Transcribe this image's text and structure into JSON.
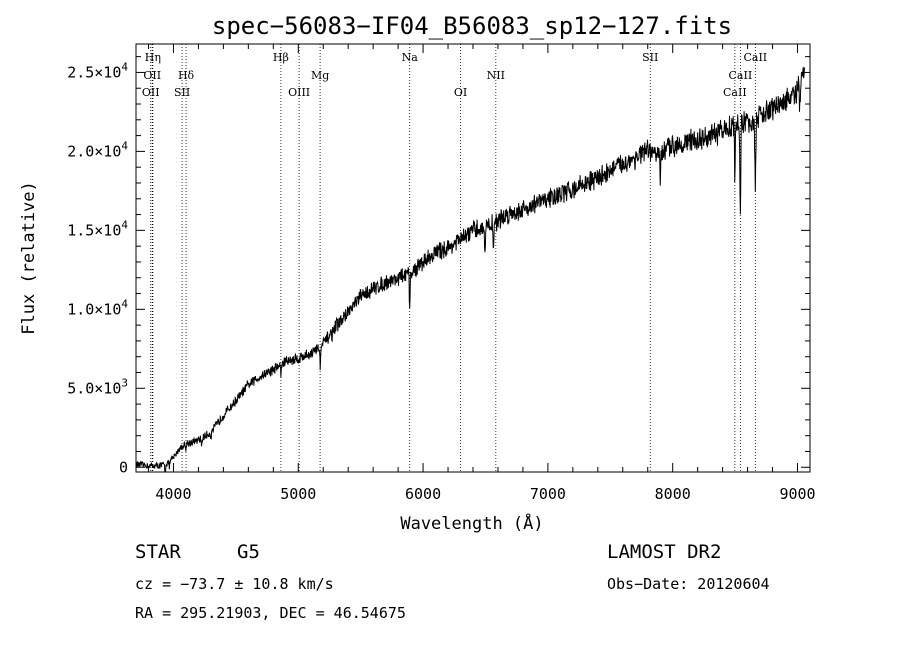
{
  "chart_data": {
    "type": "line",
    "title": "spec−56083−IF04_B56083_sp12−127.fits",
    "xlabel": "Wavelength (Å)",
    "ylabel": "Flux (relative)",
    "xlim": [
      3700,
      9100
    ],
    "ylim": [
      -300,
      26800
    ],
    "x_ticks": [
      4000,
      5000,
      6000,
      7000,
      8000,
      9000
    ],
    "y_ticks": [
      {
        "value": 0,
        "mant": "0",
        "exp": ""
      },
      {
        "value": 5000,
        "mant": "5.0×10",
        "exp": "3"
      },
      {
        "value": 10000,
        "mant": "1.0×10",
        "exp": "4"
      },
      {
        "value": 15000,
        "mant": "1.5×10",
        "exp": "4"
      },
      {
        "value": 20000,
        "mant": "2.0×10",
        "exp": "4"
      },
      {
        "value": 25000,
        "mant": "2.5×10",
        "exp": "4"
      }
    ],
    "grid": false,
    "spectrum": {
      "x": [
        3700,
        3800,
        3900,
        3950,
        4000,
        4050,
        4100,
        4200,
        4300,
        4400,
        4500,
        4600,
        4700,
        4800,
        4900,
        5000,
        5100,
        5200,
        5300,
        5400,
        5500,
        5600,
        5700,
        5800,
        5900,
        6000,
        6100,
        6200,
        6300,
        6400,
        6500,
        6600,
        6700,
        6800,
        6900,
        7000,
        7100,
        7200,
        7300,
        7400,
        7500,
        7600,
        7700,
        7800,
        7900,
        8000,
        8100,
        8200,
        8300,
        8400,
        8500,
        8600,
        8700,
        8800,
        8900,
        9000,
        9050
      ],
      "y": [
        200,
        100,
        100,
        300,
        600,
        1200,
        1500,
        1700,
        2200,
        3300,
        4200,
        5200,
        5800,
        6200,
        6700,
        6900,
        7200,
        7800,
        8900,
        9800,
        10800,
        11300,
        11700,
        12000,
        12300,
        13000,
        13600,
        13900,
        14400,
        15000,
        15200,
        15600,
        16100,
        16300,
        16700,
        17000,
        17300,
        17600,
        18000,
        18300,
        18800,
        19200,
        19600,
        20000,
        19800,
        20400,
        20600,
        20700,
        20900,
        21300,
        21800,
        21800,
        22200,
        22700,
        23200,
        23700,
        25200
      ]
    },
    "absorption": [
      {
        "x": 3934,
        "depth": 600
      },
      {
        "x": 3968,
        "depth": 400
      },
      {
        "x": 4101,
        "depth": 300
      },
      {
        "x": 4227,
        "depth": 400
      },
      {
        "x": 4300,
        "depth": 300
      },
      {
        "x": 4861,
        "depth": 600
      },
      {
        "x": 5175,
        "depth": 1200
      },
      {
        "x": 5270,
        "depth": 400
      },
      {
        "x": 5893,
        "depth": 2200
      },
      {
        "x": 6495,
        "depth": 1300
      },
      {
        "x": 6563,
        "depth": 1500
      },
      {
        "x": 7900,
        "depth": 1600
      },
      {
        "x": 8498,
        "depth": 3400
      },
      {
        "x": 8542,
        "depth": 5900
      },
      {
        "x": 8662,
        "depth": 4900
      },
      {
        "x": 9020,
        "depth": 1800
      }
    ],
    "lines": [
      {
        "x": 3835,
        "label": "Hη",
        "row": 0
      },
      {
        "x": 3830,
        "label": "OII",
        "row": 1
      },
      {
        "x": 3818,
        "label": "OII",
        "row": 2
      },
      {
        "x": 4101,
        "label": "Hδ",
        "row": 1
      },
      {
        "x": 4069,
        "label": "SII",
        "row": 2
      },
      {
        "x": 4861,
        "label": "Hβ",
        "row": 0
      },
      {
        "x": 5007,
        "label": "OIII",
        "row": 2
      },
      {
        "x": 5175,
        "label": "Mg",
        "row": 1
      },
      {
        "x": 5893,
        "label": "Na",
        "row": 0
      },
      {
        "x": 6300,
        "label": "OI",
        "row": 2
      },
      {
        "x": 6583,
        "label": "NII",
        "row": 1
      },
      {
        "x": 7820,
        "label": "SII",
        "row": 0
      },
      {
        "x": 8498,
        "label": "CaII",
        "row": 2
      },
      {
        "x": 8542,
        "label": "CaII",
        "row": 1
      },
      {
        "x": 8662,
        "label": "CaII",
        "row": 0
      }
    ]
  },
  "info": {
    "class": "STAR",
    "subclass": "G5",
    "survey": "LAMOST DR2",
    "cz": "cz = −73.7 ± 10.8 km/s",
    "obsdate": "Obs−Date: 20120604",
    "radec": "RA = 295.21903, DEC =  46.54675"
  }
}
